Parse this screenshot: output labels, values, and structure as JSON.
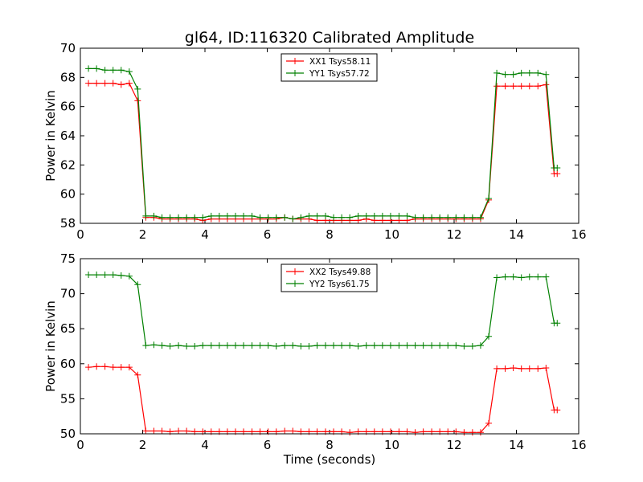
{
  "figure_title": "gl64, ID:116320 Calibrated Amplitude",
  "colors": {
    "xx": "#ff0000",
    "yy": "#008000"
  },
  "chart_data": [
    {
      "type": "line",
      "title": "gl64, ID:116320 Calibrated Amplitude",
      "xlabel": "",
      "ylabel": "Power in Kelvin",
      "xlim": [
        0,
        16
      ],
      "ylim": [
        58,
        70
      ],
      "xticks": [
        0,
        2,
        4,
        6,
        8,
        10,
        12,
        14,
        16
      ],
      "yticks": [
        58,
        60,
        62,
        64,
        66,
        68,
        70
      ],
      "grid": false,
      "legend_position": "top-center",
      "x": [
        0.26,
        0.52,
        0.79,
        1.05,
        1.31,
        1.57,
        1.84,
        2.1,
        2.36,
        2.62,
        2.88,
        3.15,
        3.41,
        3.67,
        3.93,
        4.2,
        4.46,
        4.72,
        4.98,
        5.24,
        5.51,
        5.77,
        6.03,
        6.29,
        6.56,
        6.82,
        7.08,
        7.34,
        7.6,
        7.87,
        8.13,
        8.39,
        8.65,
        8.92,
        9.18,
        9.44,
        9.7,
        9.96,
        10.23,
        10.49,
        10.75,
        11.01,
        11.28,
        11.54,
        11.8,
        12.06,
        12.32,
        12.59,
        12.85,
        13.11,
        13.37,
        13.64,
        13.9,
        14.16,
        14.42,
        14.69,
        14.95,
        15.21,
        15.31
      ],
      "series": [
        {
          "name": "XX1 Tsys58.11",
          "color": "#ff0000",
          "values": [
            67.6,
            67.6,
            67.6,
            67.6,
            67.5,
            67.6,
            66.4,
            58.4,
            58.4,
            58.3,
            58.3,
            58.3,
            58.3,
            58.3,
            58.2,
            58.3,
            58.3,
            58.3,
            58.3,
            58.3,
            58.3,
            58.3,
            58.3,
            58.3,
            58.4,
            58.3,
            58.3,
            58.3,
            58.2,
            58.2,
            58.2,
            58.2,
            58.2,
            58.2,
            58.3,
            58.2,
            58.2,
            58.2,
            58.2,
            58.2,
            58.3,
            58.3,
            58.3,
            58.3,
            58.3,
            58.3,
            58.3,
            58.3,
            58.3,
            59.6,
            67.4,
            67.4,
            67.4,
            67.4,
            67.4,
            67.4,
            67.5,
            61.4,
            61.4
          ]
        },
        {
          "name": "YY1 Tsys57.72",
          "color": "#008000",
          "values": [
            68.6,
            68.6,
            68.5,
            68.5,
            68.5,
            68.4,
            67.2,
            58.5,
            58.5,
            58.4,
            58.4,
            58.4,
            58.4,
            58.4,
            58.4,
            58.5,
            58.5,
            58.5,
            58.5,
            58.5,
            58.5,
            58.4,
            58.4,
            58.4,
            58.4,
            58.3,
            58.4,
            58.5,
            58.5,
            58.5,
            58.4,
            58.4,
            58.4,
            58.5,
            58.5,
            58.5,
            58.5,
            58.5,
            58.5,
            58.5,
            58.4,
            58.4,
            58.4,
            58.4,
            58.4,
            58.4,
            58.4,
            58.4,
            58.4,
            59.7,
            68.3,
            68.2,
            68.2,
            68.3,
            68.3,
            68.3,
            68.2,
            61.8,
            61.8
          ]
        }
      ]
    },
    {
      "type": "line",
      "title": "",
      "xlabel": "Time (seconds)",
      "ylabel": "Power in Kelvin",
      "xlim": [
        0,
        16
      ],
      "ylim": [
        50,
        75
      ],
      "xticks": [
        0,
        2,
        4,
        6,
        8,
        10,
        12,
        14,
        16
      ],
      "yticks": [
        50,
        55,
        60,
        65,
        70,
        75
      ],
      "grid": false,
      "legend_position": "top-center",
      "x": [
        0.26,
        0.52,
        0.79,
        1.05,
        1.31,
        1.57,
        1.84,
        2.1,
        2.36,
        2.62,
        2.88,
        3.15,
        3.41,
        3.67,
        3.93,
        4.2,
        4.46,
        4.72,
        4.98,
        5.24,
        5.51,
        5.77,
        6.03,
        6.29,
        6.56,
        6.82,
        7.08,
        7.34,
        7.6,
        7.87,
        8.13,
        8.39,
        8.65,
        8.92,
        9.18,
        9.44,
        9.7,
        9.96,
        10.23,
        10.49,
        10.75,
        11.01,
        11.28,
        11.54,
        11.8,
        12.06,
        12.32,
        12.59,
        12.85,
        13.11,
        13.37,
        13.64,
        13.9,
        14.16,
        14.42,
        14.69,
        14.95,
        15.21,
        15.31
      ],
      "series": [
        {
          "name": "XX2 Tsys49.88",
          "color": "#ff0000",
          "values": [
            59.5,
            59.6,
            59.6,
            59.5,
            59.5,
            59.5,
            58.4,
            50.4,
            50.4,
            50.4,
            50.3,
            50.4,
            50.4,
            50.3,
            50.3,
            50.3,
            50.3,
            50.3,
            50.3,
            50.3,
            50.3,
            50.3,
            50.3,
            50.3,
            50.4,
            50.4,
            50.3,
            50.3,
            50.3,
            50.3,
            50.3,
            50.3,
            50.2,
            50.3,
            50.3,
            50.3,
            50.3,
            50.3,
            50.3,
            50.3,
            50.2,
            50.3,
            50.3,
            50.3,
            50.3,
            50.3,
            50.2,
            50.2,
            50.2,
            51.5,
            59.3,
            59.3,
            59.4,
            59.3,
            59.3,
            59.3,
            59.4,
            53.4,
            53.4
          ]
        },
        {
          "name": "YY2 Tsys61.75",
          "color": "#008000",
          "values": [
            72.7,
            72.7,
            72.7,
            72.7,
            72.6,
            72.5,
            71.3,
            62.6,
            62.7,
            62.6,
            62.5,
            62.6,
            62.5,
            62.5,
            62.6,
            62.6,
            62.6,
            62.6,
            62.6,
            62.6,
            62.6,
            62.6,
            62.6,
            62.5,
            62.6,
            62.6,
            62.5,
            62.5,
            62.6,
            62.6,
            62.6,
            62.6,
            62.6,
            62.5,
            62.6,
            62.6,
            62.6,
            62.6,
            62.6,
            62.6,
            62.6,
            62.6,
            62.6,
            62.6,
            62.6,
            62.6,
            62.5,
            62.5,
            62.6,
            63.9,
            72.3,
            72.4,
            72.4,
            72.3,
            72.4,
            72.4,
            72.4,
            65.8,
            65.8
          ]
        }
      ]
    }
  ]
}
